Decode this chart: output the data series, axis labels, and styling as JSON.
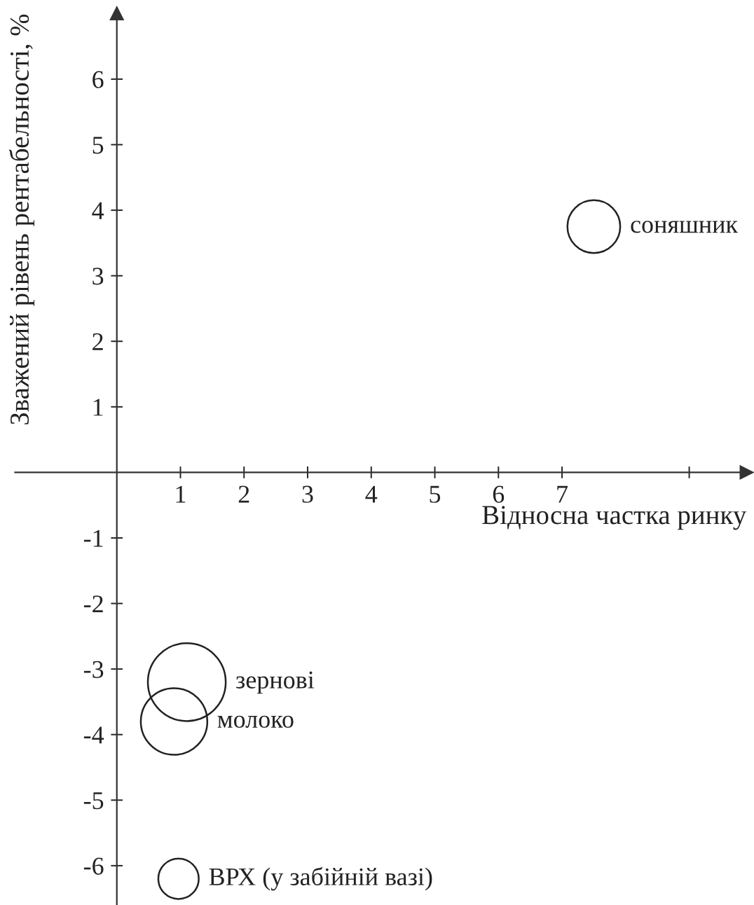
{
  "chart_data": {
    "type": "bubble",
    "xlabel": "Відносна частка ринку",
    "ylabel": "Зважений рівень рентабельності, %",
    "x": [
      7.5,
      1.1,
      0.9,
      0.97
    ],
    "values": [
      3.75,
      -3.2,
      -3.8,
      -6.2
    ],
    "sizes": [
      0.46,
      1,
      0.73,
      0.27
    ],
    "color": "#222222",
    "xlim": [
      -1.6,
      9.9
    ],
    "ylim": [
      -6.6,
      7.0
    ],
    "xticks": [
      1,
      2,
      3,
      4,
      5,
      6,
      7,
      {
        "value": 9,
        "label": null
      }
    ],
    "yticks": [
      -6,
      -5,
      -4,
      -3,
      -2,
      -1,
      1,
      2,
      3,
      4,
      5,
      6
    ],
    "annotations": [
      {
        "text": "соняшник",
        "x": 7.5,
        "y": 3.75
      },
      {
        "text": "зернові",
        "x": 1.1,
        "y": -3.2
      },
      {
        "text": "молоко",
        "x": 0.9,
        "y": -3.8
      },
      {
        "text": "ВРХ (у забійній вазі)",
        "x": 0.97,
        "y": -6.2
      }
    ],
    "grid": false,
    "legend": false
  }
}
